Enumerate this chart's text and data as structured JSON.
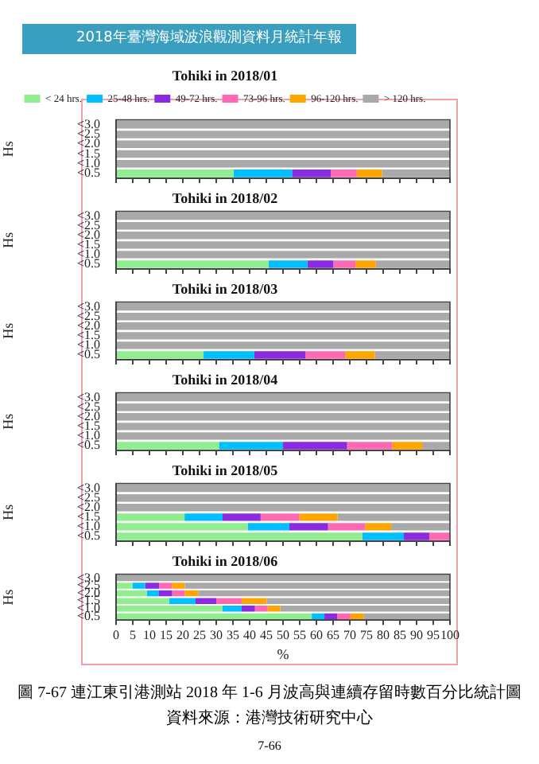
{
  "chart_data": [
    {
      "type": "bar",
      "orientation": "horizontal",
      "stacked": true,
      "title": "Tohiki in 2018/01",
      "ylabel": "Hs",
      "legend": "top",
      "tick_labels": "y",
      "xlim": [
        0,
        100
      ],
      "xticks": [
        0,
        5,
        10,
        15,
        20,
        25,
        30,
        35,
        40,
        45,
        50,
        55,
        60,
        65,
        70,
        75,
        80,
        85,
        90,
        95,
        100
      ],
      "categories": [
        "<3.0",
        "<2.5",
        "<2.0",
        "<1.5",
        "<1.0",
        "<0.5"
      ],
      "annotations": [
        "2018年臺灣海域波浪觀測資料月統計年報"
      ],
      "series": [
        {
          "name": "< 24 hrs.",
          "color": "#90ee90",
          "values": [
            0,
            0,
            0,
            0,
            0,
            35.2
          ]
        },
        {
          "name": "25-48 hrs.",
          "color": "#00bfff",
          "values": [
            0,
            0,
            0,
            0,
            0,
            17.5
          ]
        },
        {
          "name": "49-72 hrs.",
          "color": "#8a2be2",
          "values": [
            0,
            0,
            0,
            0,
            0,
            11.6
          ]
        },
        {
          "name": "73-96 hrs.",
          "color": "#ff69b4",
          "values": [
            0,
            0,
            0,
            0,
            0,
            7.8
          ]
        },
        {
          "name": "96-120 hrs.",
          "color": "#ffa500",
          "values": [
            0,
            0,
            0,
            0,
            0,
            7.6
          ]
        },
        {
          "name": "> 120 hrs.",
          "color": "#a9a9a9",
          "values": [
            100,
            100,
            100,
            100,
            100,
            20.3
          ]
        }
      ]
    },
    {
      "type": "bar",
      "orientation": "horizontal",
      "stacked": true,
      "title": "Tohiki in 2018/02",
      "ylabel": "Hs",
      "tick_labels": "y",
      "xlim": [
        0,
        100
      ],
      "xticks": [
        0,
        5,
        10,
        15,
        20,
        25,
        30,
        35,
        40,
        45,
        50,
        55,
        60,
        65,
        70,
        75,
        80,
        85,
        90,
        95,
        100
      ],
      "categories": [
        "<3.0",
        "<2.5",
        "<2.0",
        "<1.5",
        "<1.0",
        "<0.5"
      ],
      "series": [
        {
          "color": "#90ee90",
          "values": [
            0,
            0,
            0,
            0,
            0,
            45.7
          ]
        },
        {
          "color": "#00bfff",
          "values": [
            0,
            0,
            0,
            0,
            0,
            11.6
          ]
        },
        {
          "color": "#8a2be2",
          "values": [
            0,
            0,
            0,
            0,
            0,
            7.8
          ]
        },
        {
          "color": "#ff69b4",
          "values": [
            0,
            0,
            0,
            0,
            0,
            6.6
          ]
        },
        {
          "color": "#ffa500",
          "values": [
            0,
            0,
            0,
            0,
            0,
            6.1
          ]
        },
        {
          "color": "#a9a9a9",
          "values": [
            100,
            100,
            100,
            100,
            100,
            22.2
          ]
        }
      ]
    },
    {
      "type": "bar",
      "orientation": "horizontal",
      "stacked": true,
      "title": "Tohiki in 2018/03",
      "ylabel": "Hs",
      "tick_labels": "y",
      "xlim": [
        0,
        100
      ],
      "xticks": [
        0,
        5,
        10,
        15,
        20,
        25,
        30,
        35,
        40,
        45,
        50,
        55,
        60,
        65,
        70,
        75,
        80,
        85,
        90,
        95,
        100
      ],
      "categories": [
        "<3.0",
        "<2.5",
        "<2.0",
        "<1.5",
        "<1.0",
        "<0.5"
      ],
      "series": [
        {
          "color": "#90ee90",
          "values": [
            0,
            0,
            0,
            0,
            0,
            26.2
          ]
        },
        {
          "color": "#00bfff",
          "values": [
            0,
            0,
            0,
            0,
            0,
            15.2
          ]
        },
        {
          "color": "#8a2be2",
          "values": [
            0,
            0,
            0,
            0,
            0,
            15.3
          ]
        },
        {
          "color": "#ff69b4",
          "values": [
            0,
            0,
            0,
            0,
            0,
            11.9
          ]
        },
        {
          "color": "#ffa500",
          "values": [
            0,
            0,
            0,
            0,
            0,
            8.9
          ]
        },
        {
          "color": "#a9a9a9",
          "values": [
            100,
            100,
            100,
            100,
            100,
            22.5
          ]
        }
      ]
    },
    {
      "type": "bar",
      "orientation": "horizontal",
      "stacked": true,
      "title": "Tohiki in 2018/04",
      "ylabel": "Hs",
      "tick_labels": "y",
      "xlim": [
        0,
        100
      ],
      "xticks": [
        0,
        5,
        10,
        15,
        20,
        25,
        30,
        35,
        40,
        45,
        50,
        55,
        60,
        65,
        70,
        75,
        80,
        85,
        90,
        95,
        100
      ],
      "categories": [
        "<3.0",
        "<2.5",
        "<2.0",
        "<1.5",
        "<1.0",
        "<0.5"
      ],
      "series": [
        {
          "color": "#90ee90",
          "values": [
            0,
            0,
            0,
            0,
            0,
            30.8
          ]
        },
        {
          "color": "#00bfff",
          "values": [
            0,
            0,
            0,
            0,
            0,
            19.2
          ]
        },
        {
          "color": "#8a2be2",
          "values": [
            0,
            0,
            0,
            0,
            0,
            19.2
          ]
        },
        {
          "color": "#ff69b4",
          "values": [
            0,
            0,
            0,
            0,
            0,
            13.5
          ]
        },
        {
          "color": "#ffa500",
          "values": [
            0,
            0,
            0,
            0,
            0,
            9.0
          ]
        },
        {
          "color": "#a9a9a9",
          "values": [
            100,
            100,
            100,
            100,
            100,
            8.3
          ]
        }
      ]
    },
    {
      "type": "bar",
      "orientation": "horizontal",
      "stacked": true,
      "title": "Tohiki in 2018/05",
      "ylabel": "Hs",
      "tick_labels": "y",
      "xlim": [
        0,
        100
      ],
      "xticks": [
        0,
        5,
        10,
        15,
        20,
        25,
        30,
        35,
        40,
        45,
        50,
        55,
        60,
        65,
        70,
        75,
        80,
        85,
        90,
        95,
        100
      ],
      "categories": [
        "<3.0",
        "<2.5",
        "<2.0",
        "<1.5",
        "<1.0",
        "<0.5"
      ],
      "series": [
        {
          "color": "#90ee90",
          "values": [
            0,
            0,
            0,
            20.5,
            39.4,
            73.8
          ]
        },
        {
          "color": "#00bfff",
          "values": [
            0,
            0,
            0,
            11.4,
            12.5,
            12.4
          ]
        },
        {
          "color": "#8a2be2",
          "values": [
            0,
            0,
            0,
            11.4,
            11.6,
            7.6
          ]
        },
        {
          "color": "#ff69b4",
          "values": [
            0,
            0,
            0,
            11.6,
            11.1,
            6.2
          ]
        },
        {
          "color": "#ffa500",
          "values": [
            0,
            0,
            0,
            11.4,
            7.8,
            0
          ]
        },
        {
          "color": "#a9a9a9",
          "values": [
            100,
            100,
            100,
            33.7,
            17.6,
            0
          ]
        }
      ]
    },
    {
      "type": "bar",
      "orientation": "horizontal",
      "stacked": true,
      "title": "Tohiki in 2018/06",
      "ylabel": "Hs",
      "xlabel": "%",
      "xlim": [
        0,
        100
      ],
      "xticks": [
        0,
        5,
        10,
        15,
        20,
        25,
        30,
        35,
        40,
        45,
        50,
        55,
        60,
        65,
        70,
        75,
        80,
        85,
        90,
        95,
        100
      ],
      "categories": [
        "<3.0",
        "<2.5",
        "<2.0",
        "<1.5",
        "<1.0",
        "<0.5"
      ],
      "annotations": [
        "圖 7-67 連江東引港測站 2018 年 1-6 月波高與連續存留時數百分比統計圖",
        "資料來源：港灣技術研究中心",
        "7-66"
      ],
      "series": [
        {
          "color": "#90ee90",
          "values": [
            0,
            4.9,
            9.2,
            15.9,
            31.9,
            58.6
          ]
        },
        {
          "color": "#00bfff",
          "values": [
            0,
            3.8,
            3.5,
            7.9,
            5.7,
            3.8
          ]
        },
        {
          "color": "#8a2be2",
          "values": [
            0,
            4.2,
            4.1,
            6.2,
            4.0,
            3.8
          ]
        },
        {
          "color": "#ff69b4",
          "values": [
            0,
            3.8,
            3.8,
            7.6,
            3.8,
            4.0
          ]
        },
        {
          "color": "#ffa500",
          "values": [
            0,
            3.9,
            4.0,
            7.5,
            3.8,
            3.9
          ]
        },
        {
          "color": "#a9a9a9",
          "values": [
            100,
            79.4,
            75.4,
            54.9,
            50.8,
            25.9
          ]
        }
      ]
    }
  ]
}
